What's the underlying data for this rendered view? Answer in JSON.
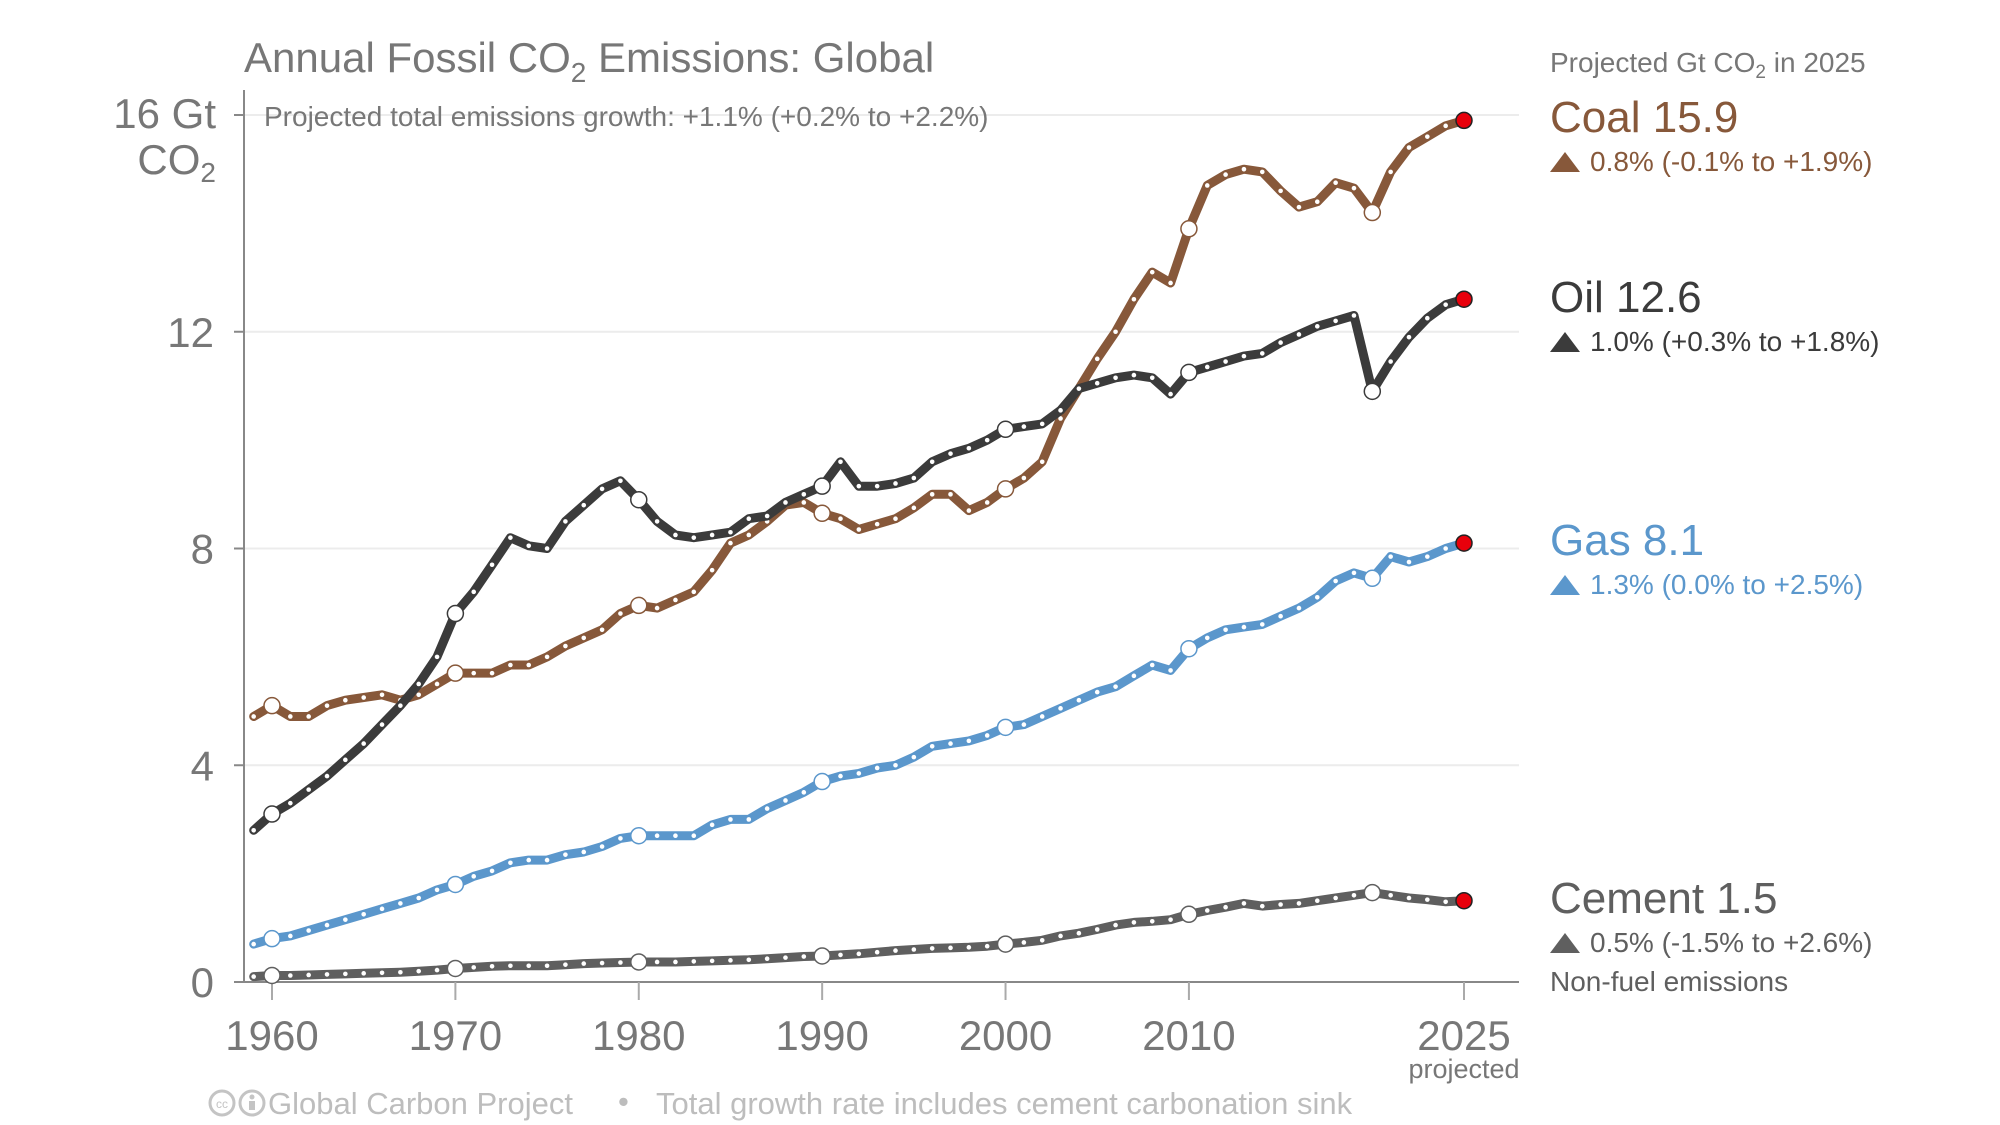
{
  "chart_data": {
    "type": "line",
    "title_pre": "Annual Fossil CO",
    "title_sub": "2",
    "title_post": " Emissions: Global",
    "subtitle": "Projected total emissions growth: +1.1% (+0.2% to +2.2%)",
    "ylabel_line1": "16 Gt",
    "ylabel_co": "CO",
    "ylabel_sub": "2",
    "ylim": [
      0,
      16
    ],
    "xlim": [
      1959,
      2025
    ],
    "yticks": [
      "0",
      "4",
      "8",
      "12"
    ],
    "ytick_values": [
      0,
      4,
      8,
      12,
      16
    ],
    "xticks": [
      "1960",
      "1970",
      "1980",
      "1990",
      "2000",
      "2010",
      "2025"
    ],
    "xtick_values": [
      1960,
      1970,
      1980,
      1990,
      2000,
      2010,
      2025
    ],
    "x_note": "projected",
    "grid": true,
    "legend_header_pre": "Projected Gt CO",
    "legend_header_sub": "2",
    "legend_header_post": " in 2025",
    "legend_placement": "right",
    "projection_marker_color": "#e8000b",
    "x_start": 1959,
    "series": [
      {
        "name": "Coal",
        "label": "Coal 15.9",
        "growth": "0.8% (-0.1% to +1.9%)",
        "color": "#87583a",
        "values": [
          4.9,
          5.1,
          4.9,
          4.9,
          5.1,
          5.2,
          5.25,
          5.3,
          5.2,
          5.3,
          5.5,
          5.7,
          5.7,
          5.7,
          5.85,
          5.85,
          6.0,
          6.2,
          6.35,
          6.5,
          6.8,
          6.95,
          6.9,
          7.05,
          7.2,
          7.6,
          8.1,
          8.25,
          8.5,
          8.8,
          8.85,
          8.65,
          8.55,
          8.35,
          8.45,
          8.55,
          8.75,
          9.0,
          9.0,
          8.7,
          8.85,
          9.1,
          9.3,
          9.6,
          10.4,
          10.95,
          11.5,
          12.0,
          12.6,
          13.1,
          12.9,
          13.9,
          14.7,
          14.9,
          15.0,
          14.95,
          14.6,
          14.3,
          14.4,
          14.75,
          14.65,
          14.2,
          14.95,
          15.4,
          15.6,
          15.8,
          15.9
        ]
      },
      {
        "name": "Oil",
        "label": "Oil 12.6",
        "growth": "1.0% (+0.3% to +1.8%)",
        "color": "#3b3b3b",
        "values": [
          2.8,
          3.1,
          3.3,
          3.55,
          3.8,
          4.1,
          4.4,
          4.75,
          5.1,
          5.5,
          6.0,
          6.8,
          7.2,
          7.7,
          8.2,
          8.05,
          8.0,
          8.5,
          8.8,
          9.1,
          9.25,
          8.9,
          8.5,
          8.25,
          8.2,
          8.25,
          8.3,
          8.55,
          8.6,
          8.85,
          9.0,
          9.15,
          9.6,
          9.15,
          9.15,
          9.2,
          9.3,
          9.6,
          9.75,
          9.85,
          10.0,
          10.2,
          10.25,
          10.3,
          10.55,
          10.95,
          11.05,
          11.15,
          11.2,
          11.15,
          10.85,
          11.25,
          11.35,
          11.45,
          11.55,
          11.6,
          11.8,
          11.95,
          12.1,
          12.2,
          12.3,
          10.9,
          11.45,
          11.9,
          12.25,
          12.5,
          12.6
        ]
      },
      {
        "name": "Gas",
        "label": "Gas 8.1",
        "growth": "1.3% (0.0% to +2.5%)",
        "color": "#5b97cc",
        "values": [
          0.7,
          0.8,
          0.85,
          0.95,
          1.05,
          1.15,
          1.25,
          1.35,
          1.45,
          1.55,
          1.7,
          1.8,
          1.95,
          2.05,
          2.2,
          2.25,
          2.25,
          2.35,
          2.4,
          2.5,
          2.65,
          2.7,
          2.7,
          2.7,
          2.7,
          2.9,
          3.0,
          3.0,
          3.2,
          3.35,
          3.5,
          3.7,
          3.8,
          3.85,
          3.95,
          4.0,
          4.15,
          4.35,
          4.4,
          4.45,
          4.55,
          4.7,
          4.75,
          4.9,
          5.05,
          5.2,
          5.35,
          5.45,
          5.65,
          5.85,
          5.75,
          6.15,
          6.35,
          6.5,
          6.55,
          6.6,
          6.75,
          6.9,
          7.1,
          7.4,
          7.55,
          7.45,
          7.85,
          7.75,
          7.85,
          8.0,
          8.1
        ]
      },
      {
        "name": "Cement",
        "label": "Cement 1.5",
        "growth": "0.5% (-1.5% to +2.6%)",
        "note": "Non-fuel emissions",
        "color": "#5f5f5f",
        "values": [
          0.1,
          0.12,
          0.12,
          0.13,
          0.14,
          0.15,
          0.16,
          0.17,
          0.18,
          0.2,
          0.22,
          0.25,
          0.27,
          0.29,
          0.3,
          0.3,
          0.3,
          0.32,
          0.34,
          0.35,
          0.36,
          0.37,
          0.37,
          0.37,
          0.38,
          0.39,
          0.4,
          0.41,
          0.43,
          0.45,
          0.47,
          0.48,
          0.5,
          0.52,
          0.55,
          0.58,
          0.6,
          0.62,
          0.63,
          0.64,
          0.66,
          0.7,
          0.73,
          0.77,
          0.85,
          0.9,
          0.97,
          1.05,
          1.1,
          1.12,
          1.15,
          1.25,
          1.32,
          1.38,
          1.45,
          1.4,
          1.43,
          1.45,
          1.5,
          1.55,
          1.6,
          1.65,
          1.6,
          1.55,
          1.52,
          1.48,
          1.5
        ]
      }
    ]
  },
  "footer": {
    "license_icons": "cc-by-icons",
    "source": "Global Carbon Project",
    "separator": "•",
    "note": "Total growth rate includes cement carbonation sink"
  }
}
